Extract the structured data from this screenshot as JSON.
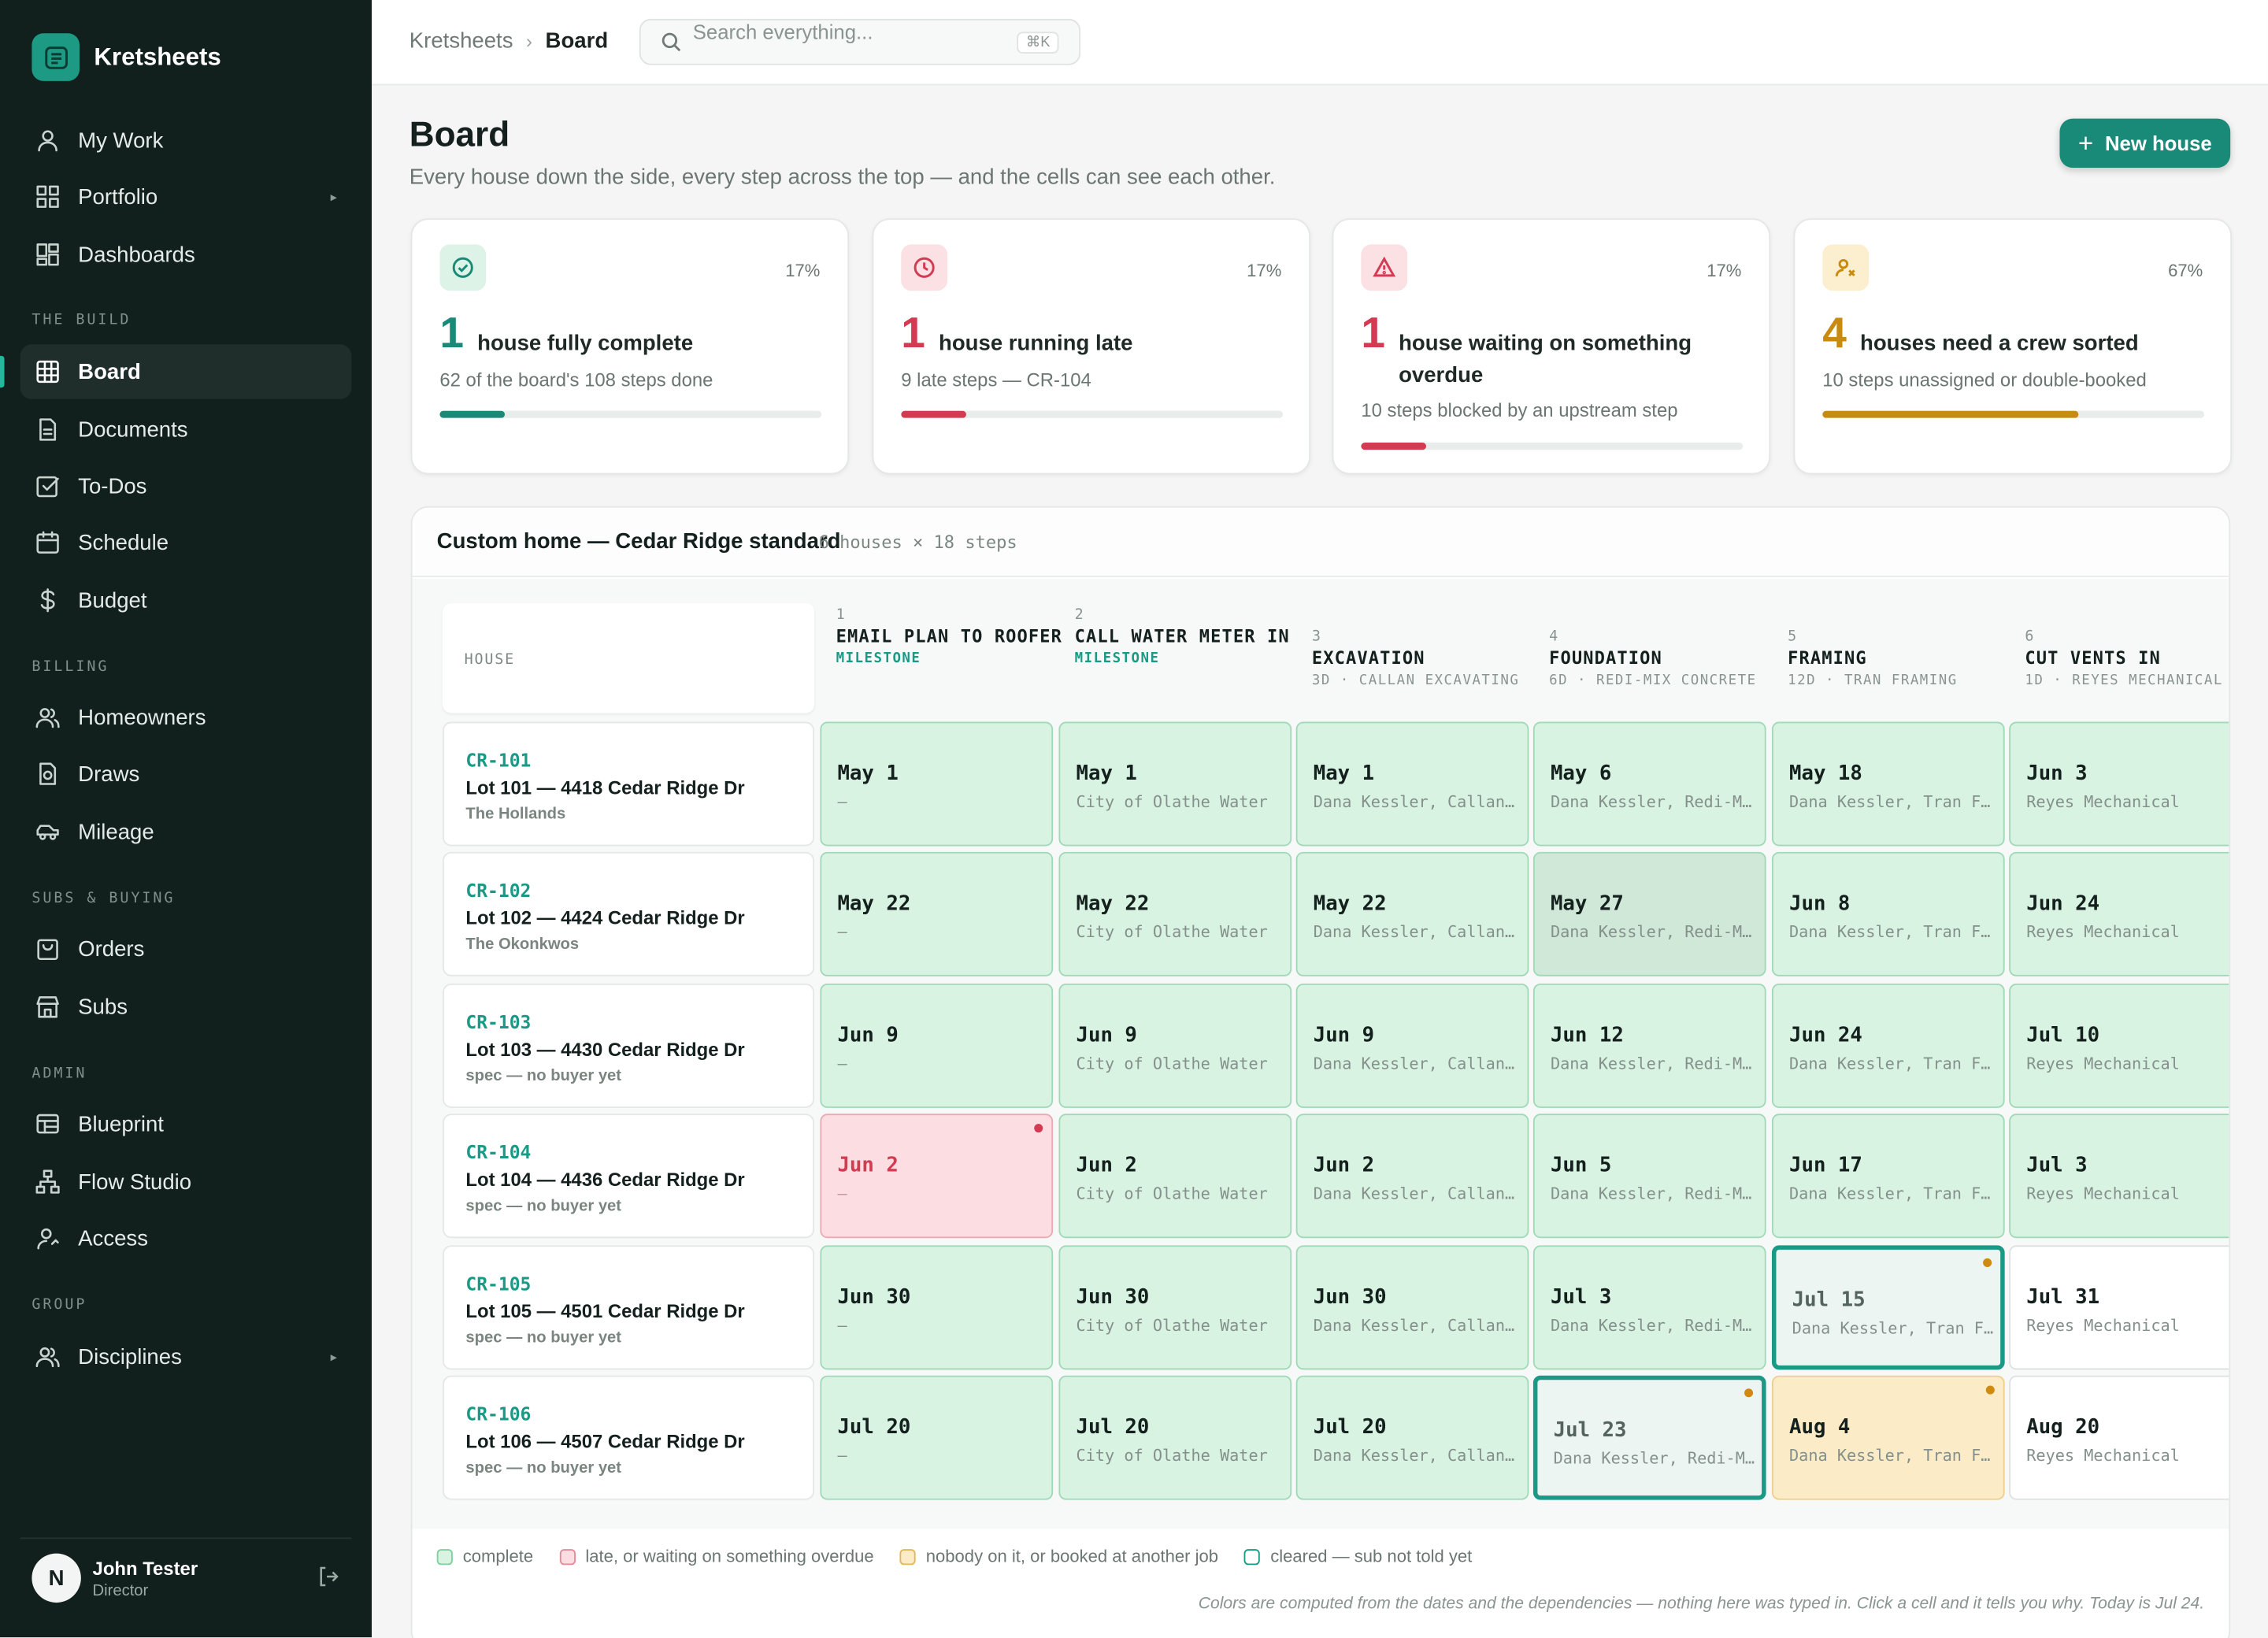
{
  "app": {
    "name": "Kretsheets"
  },
  "nav": {
    "top": [
      {
        "label": "My Work",
        "icon": "user-icon"
      },
      {
        "label": "Portfolio",
        "icon": "grid-icon",
        "caret": "▸"
      },
      {
        "label": "Dashboards",
        "icon": "dashboard-icon"
      }
    ],
    "sections": {
      "build": "THE BUILD",
      "billing": "BILLING",
      "subs": "SUBS & BUYING",
      "admin": "ADMIN",
      "group": "GROUP"
    },
    "build": [
      {
        "label": "Board",
        "icon": "board-icon",
        "active": true
      },
      {
        "label": "Documents",
        "icon": "document-icon"
      },
      {
        "label": "To-Dos",
        "icon": "checkbox-icon"
      },
      {
        "label": "Schedule",
        "icon": "calendar-icon"
      },
      {
        "label": "Budget",
        "icon": "dollar-icon"
      }
    ],
    "billing": [
      {
        "label": "Homeowners",
        "icon": "people-icon"
      },
      {
        "label": "Draws",
        "icon": "receipt-icon"
      },
      {
        "label": "Mileage",
        "icon": "car-icon"
      }
    ],
    "subs": [
      {
        "label": "Orders",
        "icon": "bag-icon"
      },
      {
        "label": "Subs",
        "icon": "store-icon"
      }
    ],
    "admin": [
      {
        "label": "Blueprint",
        "icon": "blueprint-icon"
      },
      {
        "label": "Flow Studio",
        "icon": "flow-icon"
      },
      {
        "label": "Access",
        "icon": "user-key-icon"
      }
    ],
    "group": [
      {
        "label": "Disciplines",
        "icon": "people-icon",
        "caret": "▸"
      }
    ]
  },
  "user": {
    "initial": "N",
    "name": "John Tester",
    "role": "Director"
  },
  "breadcrumb": {
    "root": "Kretsheets",
    "sep": "›",
    "current": "Board"
  },
  "search": {
    "placeholder": "Search everything...",
    "shortcut": "⌘K"
  },
  "page": {
    "title": "Board",
    "subtitle": "Every house down the side, every step across the top — and the cells can see each other.",
    "new_button": "New house"
  },
  "stats": [
    {
      "count": "1",
      "label": "house fully complete",
      "note": "62 of the board's 108 steps done",
      "pct": "17%",
      "fill": 0.17,
      "color": "#1a8a78",
      "badge_bg": "#ddf3e7",
      "icon": "check-circle-icon"
    },
    {
      "count": "1",
      "label": "house running late",
      "note": "9 late steps — CR-104",
      "pct": "17%",
      "fill": 0.17,
      "color": "#d23b52",
      "badge_bg": "#fbe0e4",
      "icon": "clock-icon"
    },
    {
      "count": "1",
      "label": "house waiting on something overdue",
      "note": "10 steps blocked by an upstream step",
      "pct": "17%",
      "fill": 0.17,
      "color": "#d23b52",
      "badge_bg": "#fbe0e4",
      "icon": "warning-icon"
    },
    {
      "count": "4",
      "label": "houses need a crew sorted",
      "note": "10 steps unassigned or double-booked",
      "pct": "67%",
      "fill": 0.67,
      "color": "#c98a12",
      "badge_bg": "#fcefcf",
      "icon": "user-x-icon"
    }
  ],
  "board": {
    "title": "Custom home — Cedar Ridge standard",
    "meta": "6 houses × 18 steps",
    "corner_label": "HOUSE",
    "steps": [
      {
        "num": "1",
        "name": "Email plan to roofer",
        "meta": "MILESTONE",
        "milestone": true
      },
      {
        "num": "2",
        "name": "Call water meter in",
        "meta": "MILESTONE",
        "milestone": true
      },
      {
        "num": "3",
        "name": "Excavation",
        "meta": "3D · CALLAN EXCAVATING",
        "milestone": false
      },
      {
        "num": "4",
        "name": "Foundation",
        "meta": "6D · REDI-MIX CONCRETE",
        "milestone": false
      },
      {
        "num": "5",
        "name": "Framing",
        "meta": "12D · TRAN FRAMING",
        "milestone": false
      },
      {
        "num": "6",
        "name": "Cut vents in",
        "meta": "1D · REYES MECHANICAL",
        "milestone": false
      }
    ],
    "houses": [
      {
        "id": "CR-101",
        "name": "Lot 101 — 4418 Cedar Ridge Dr",
        "owner": "The Hollands",
        "cells": [
          {
            "date": "May 1",
            "sub": "—",
            "state": "complete"
          },
          {
            "date": "May 1",
            "sub": "City of Olathe Water",
            "state": "complete"
          },
          {
            "date": "May 1",
            "sub": "Dana Kessler, Callan Excavating",
            "state": "complete"
          },
          {
            "date": "May 6",
            "sub": "Dana Kessler, Redi-Mix Concrete",
            "state": "complete"
          },
          {
            "date": "May 18",
            "sub": "Dana Kessler, Tran Framing",
            "state": "complete"
          },
          {
            "date": "Jun 3",
            "sub": "Reyes Mechanical",
            "state": "complete"
          }
        ]
      },
      {
        "id": "CR-102",
        "name": "Lot 102 — 4424 Cedar Ridge Dr",
        "owner": "The Okonkwos",
        "cells": [
          {
            "date": "May 22",
            "sub": "—",
            "state": "complete"
          },
          {
            "date": "May 22",
            "sub": "City of Olathe Water",
            "state": "complete"
          },
          {
            "date": "May 22",
            "sub": "Dana Kessler, Callan Excavating",
            "state": "complete"
          },
          {
            "date": "May 27",
            "sub": "Dana Kessler, Redi-Mix Concrete",
            "state": "dim"
          },
          {
            "date": "Jun 8",
            "sub": "Dana Kessler, Tran Framing",
            "state": "complete"
          },
          {
            "date": "Jun 24",
            "sub": "Reyes Mechanical",
            "state": "complete"
          }
        ]
      },
      {
        "id": "CR-103",
        "name": "Lot 103 — 4430 Cedar Ridge Dr",
        "owner": "spec — no buyer yet",
        "cells": [
          {
            "date": "Jun 9",
            "sub": "—",
            "state": "complete"
          },
          {
            "date": "Jun 9",
            "sub": "City of Olathe Water",
            "state": "complete"
          },
          {
            "date": "Jun 9",
            "sub": "Dana Kessler, Callan Excavating",
            "state": "complete"
          },
          {
            "date": "Jun 12",
            "sub": "Dana Kessler, Redi-Mix Concrete",
            "state": "complete"
          },
          {
            "date": "Jun 24",
            "sub": "Dana Kessler, Tran Framing",
            "state": "complete"
          },
          {
            "date": "Jul 10",
            "sub": "Reyes Mechanical",
            "state": "complete"
          }
        ]
      },
      {
        "id": "CR-104",
        "name": "Lot 104 — 4436 Cedar Ridge Dr",
        "owner": "spec — no buyer yet",
        "cells": [
          {
            "date": "Jun 2",
            "sub": "—",
            "state": "late",
            "dot": "#d23b52"
          },
          {
            "date": "Jun 2",
            "sub": "City of Olathe Water",
            "state": "complete"
          },
          {
            "date": "Jun 2",
            "sub": "Dana Kessler, Callan Excavating",
            "state": "complete"
          },
          {
            "date": "Jun 5",
            "sub": "Dana Kessler, Redi-Mix Concrete",
            "state": "complete"
          },
          {
            "date": "Jun 17",
            "sub": "Dana Kessler, Tran Framing",
            "state": "complete"
          },
          {
            "date": "Jul 3",
            "sub": "Reyes Mechanical",
            "state": "complete"
          }
        ]
      },
      {
        "id": "CR-105",
        "name": "Lot 105 — 4501 Cedar Ridge Dr",
        "owner": "spec — no buyer yet",
        "cells": [
          {
            "date": "Jun 30",
            "sub": "—",
            "state": "complete"
          },
          {
            "date": "Jun 30",
            "sub": "City of Olathe Water",
            "state": "complete"
          },
          {
            "date": "Jun 30",
            "sub": "Dana Kessler, Callan Excavating",
            "state": "complete"
          },
          {
            "date": "Jul 3",
            "sub": "Dana Kessler, Redi-Mix Concrete",
            "state": "complete"
          },
          {
            "date": "Jul 15",
            "sub": "Dana Kessler, Tran Framing",
            "state": "cleared",
            "dot": "#d08a12"
          },
          {
            "date": "Jul 31",
            "sub": "Reyes Mechanical",
            "state": "plain"
          }
        ]
      },
      {
        "id": "CR-106",
        "name": "Lot 106 — 4507 Cedar Ridge Dr",
        "owner": "spec — no buyer yet",
        "cells": [
          {
            "date": "Jul 20",
            "sub": "—",
            "state": "complete"
          },
          {
            "date": "Jul 20",
            "sub": "City of Olathe Water",
            "state": "complete"
          },
          {
            "date": "Jul 20",
            "sub": "Dana Kessler, Callan Excavating",
            "state": "complete"
          },
          {
            "date": "Jul 23",
            "sub": "Dana Kessler, Redi-Mix Concrete",
            "state": "cleared",
            "dot": "#d08a12"
          },
          {
            "date": "Aug 4",
            "sub": "Dana Kessler, Tran Framing",
            "state": "warn",
            "dot": "#d08a12"
          },
          {
            "date": "Aug 20",
            "sub": "Reyes Mechanical",
            "state": "plain"
          }
        ]
      }
    ],
    "legend": [
      {
        "label": "complete",
        "bg": "#d9f3e2",
        "border": "#7fcf9f"
      },
      {
        "label": "late, or waiting on something overdue",
        "bg": "#fbdde2",
        "border": "#e58a99"
      },
      {
        "label": "nobody on it, or booked at another job",
        "bg": "#fbebc7",
        "border": "#e3b759"
      },
      {
        "label": "cleared — sub not told yet",
        "bg": "#ffffff",
        "border": "#1a9a86"
      }
    ],
    "footnote": "Colors are computed from the dates and the dependencies — nothing here was typed in. Click a cell and it tells you why. Today is Jul 24."
  }
}
